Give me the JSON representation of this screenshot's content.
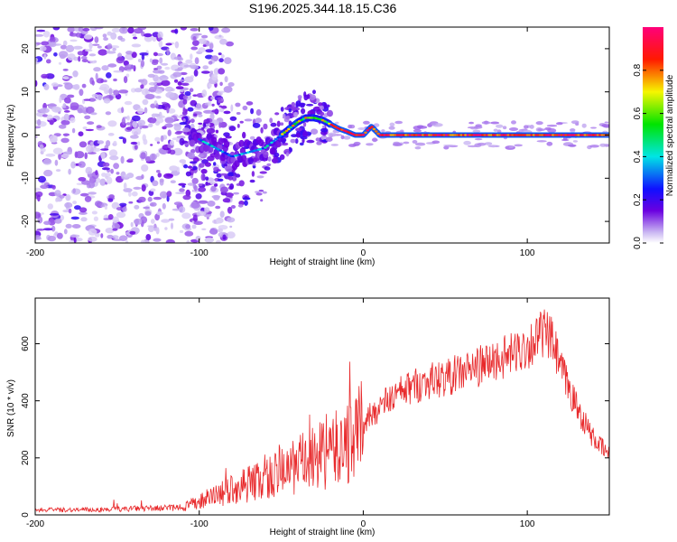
{
  "figure_title": "S196.2025.344.18.15.C36",
  "chart_data": [
    {
      "type": "heatmap",
      "title": "S196.2025.344.18.15.C36",
      "xlabel": "Height of straight line (km)",
      "ylabel": "Frequency (Hz)",
      "xlim": [
        -200,
        150
      ],
      "ylim": [
        -25,
        25
      ],
      "x_ticks": [
        -200,
        -100,
        0,
        100
      ],
      "y_ticks": [
        -20,
        -10,
        0,
        10,
        20
      ],
      "colorbar": {
        "label": "Normalized spectral amplitude",
        "range": [
          0,
          1
        ],
        "ticks": [
          "0.0",
          "0.2",
          "0.4",
          "0.6",
          "0.8"
        ],
        "colormap": "rainbow (white to violet to blue to cyan to green to yellow to red to magenta)"
      },
      "ridge_center_hz": {
        "x": [
          -110,
          -100,
          -90,
          -80,
          -70,
          -60,
          -50,
          -40,
          -35,
          -30,
          -25,
          -20,
          -15,
          -10,
          -5,
          0,
          5,
          10,
          20,
          50,
          100,
          150
        ],
        "y": [
          0,
          -1,
          -3,
          -5,
          -4,
          -3,
          0,
          3,
          4,
          4,
          3.5,
          2.5,
          1.5,
          0.8,
          0,
          0,
          2,
          0,
          0,
          0,
          0,
          0
        ]
      }
    },
    {
      "type": "line",
      "xlabel": "Height of straight line (km)",
      "ylabel": "SNR (10 * v/v)",
      "xlim": [
        -200,
        150
      ],
      "ylim": [
        0,
        760
      ],
      "x_ticks": [
        -200,
        -100,
        0,
        100
      ],
      "y_ticks": [
        0,
        200,
        400,
        600
      ],
      "series": [
        {
          "name": "SNR",
          "color": "#e8292b",
          "envelope_x": [
            -200,
            -160,
            -140,
            -120,
            -110,
            -100,
            -90,
            -80,
            -70,
            -60,
            -50,
            -40,
            -30,
            -20,
            -10,
            0,
            10,
            20,
            30,
            40,
            50,
            60,
            70,
            80,
            90,
            100,
            110,
            115,
            120,
            130,
            140,
            150
          ],
          "envelope_y": [
            18,
            18,
            22,
            24,
            26,
            45,
            70,
            90,
            110,
            125,
            150,
            175,
            195,
            220,
            250,
            320,
            380,
            420,
            450,
            470,
            480,
            500,
            520,
            540,
            560,
            590,
            640,
            610,
            520,
            380,
            270,
            210
          ]
        }
      ]
    }
  ]
}
